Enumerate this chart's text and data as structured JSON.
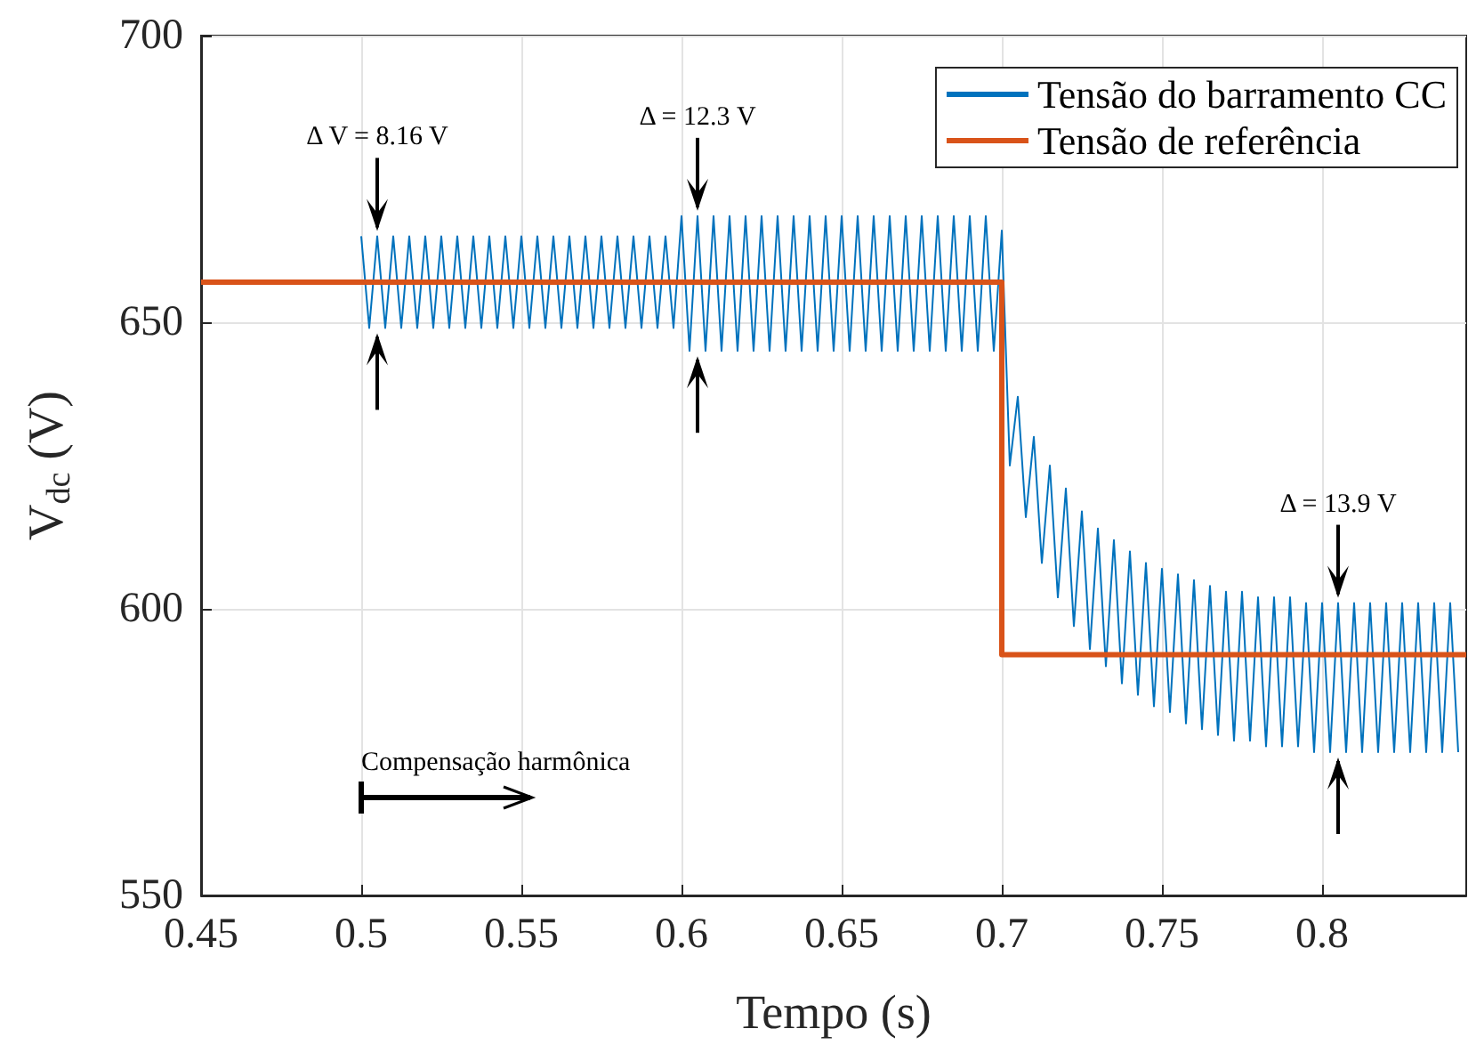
{
  "chart_data": {
    "type": "line",
    "xlabel": "Tempo (s)",
    "ylabel": "V$_{dc}$ (V)",
    "xlim": [
      0.45,
      0.845
    ],
    "xticks": [
      0.45,
      0.5,
      0.55,
      0.6,
      0.65,
      0.7,
      0.75,
      0.8
    ],
    "ylim": [
      550,
      700
    ],
    "yticks": [
      550,
      600,
      650,
      700
    ],
    "grid": true,
    "legend": "top right",
    "series": [
      {
        "name": "Tensão do barramento CC",
        "color": "#0072bd",
        "x": [
          0.5,
          0.5025,
          0.505,
          0.5075,
          0.51,
          0.5125,
          0.515,
          0.5175,
          0.52,
          0.5225,
          0.525,
          0.5275,
          0.53,
          0.5325,
          0.535,
          0.5375,
          0.54,
          0.5425,
          0.545,
          0.5475,
          0.55,
          0.5525,
          0.555,
          0.5575,
          0.56,
          0.5625,
          0.565,
          0.5675,
          0.57,
          0.5725,
          0.575,
          0.5775,
          0.58,
          0.5825,
          0.585,
          0.5875,
          0.59,
          0.5925,
          0.595,
          0.5975,
          0.6,
          0.6025,
          0.605,
          0.6075,
          0.61,
          0.6125,
          0.615,
          0.6175,
          0.62,
          0.6225,
          0.625,
          0.6275,
          0.63,
          0.6325,
          0.635,
          0.6375,
          0.64,
          0.6425,
          0.645,
          0.6475,
          0.65,
          0.6525,
          0.655,
          0.6575,
          0.66,
          0.6625,
          0.665,
          0.6675,
          0.67,
          0.6725,
          0.675,
          0.6775,
          0.68,
          0.6825,
          0.685,
          0.6875,
          0.69,
          0.6925,
          0.695,
          0.6975,
          0.7,
          0.7025,
          0.705,
          0.7075,
          0.71,
          0.7125,
          0.715,
          0.7175,
          0.72,
          0.7225,
          0.725,
          0.7275,
          0.73,
          0.7325,
          0.735,
          0.7375,
          0.74,
          0.7425,
          0.745,
          0.7475,
          0.75,
          0.7525,
          0.755,
          0.7575,
          0.76,
          0.7625,
          0.765,
          0.7675,
          0.77,
          0.7725,
          0.775,
          0.7775,
          0.78,
          0.7825,
          0.785,
          0.7875,
          0.79,
          0.7925,
          0.795,
          0.7975,
          0.8,
          0.8025,
          0.805,
          0.8075,
          0.81,
          0.8125,
          0.815,
          0.8175,
          0.82,
          0.8225,
          0.825,
          0.8275,
          0.83,
          0.8325,
          0.835,
          0.8375,
          0.84,
          0.8425
        ],
        "values": [
          665,
          649,
          665,
          649,
          665,
          649,
          665,
          649,
          665,
          649,
          665,
          649,
          665,
          649,
          665,
          649,
          665,
          649,
          665,
          649,
          665,
          649,
          665,
          649,
          665,
          649,
          665,
          649,
          665,
          649,
          665,
          649,
          665,
          649,
          665,
          649,
          665,
          649,
          665,
          649,
          668.5,
          645,
          668.5,
          645,
          668.5,
          645,
          668.5,
          645,
          668.5,
          645,
          668.5,
          645,
          668.5,
          645,
          668.5,
          645,
          668.5,
          645,
          668.5,
          645,
          668.5,
          645,
          668.5,
          645,
          668.5,
          645,
          668.5,
          645,
          668.5,
          645,
          668.5,
          645,
          668.5,
          645,
          668.5,
          645,
          668.5,
          645,
          668.5,
          645,
          666,
          625,
          637,
          616,
          630,
          608,
          625,
          602,
          621,
          597,
          617,
          593,
          614,
          590,
          612,
          587,
          610,
          585,
          608,
          583,
          607,
          582,
          606,
          580,
          605,
          579,
          604,
          578,
          603,
          577,
          603,
          577,
          602,
          576,
          602,
          576,
          602,
          576,
          601,
          575,
          601,
          575,
          601,
          575,
          601,
          575,
          601,
          575,
          601,
          575,
          601,
          575,
          601,
          575,
          601,
          575,
          601,
          575
        ]
      },
      {
        "name": "Tensão de referência",
        "color": "#d95319",
        "x": [
          0.45,
          0.7,
          0.7,
          0.845
        ],
        "values": [
          657,
          657,
          592,
          592
        ]
      }
    ],
    "annotations": [
      {
        "text": "Δ V = 8.16 V",
        "x": 0.505,
        "y": 665
      },
      {
        "text": "Δ = 12.3 V",
        "x": 0.605,
        "y": 668.5
      },
      {
        "text": "Δ = 13.9 V",
        "x": 0.805,
        "y": 601
      },
      "Compensação harmônica"
    ]
  }
}
